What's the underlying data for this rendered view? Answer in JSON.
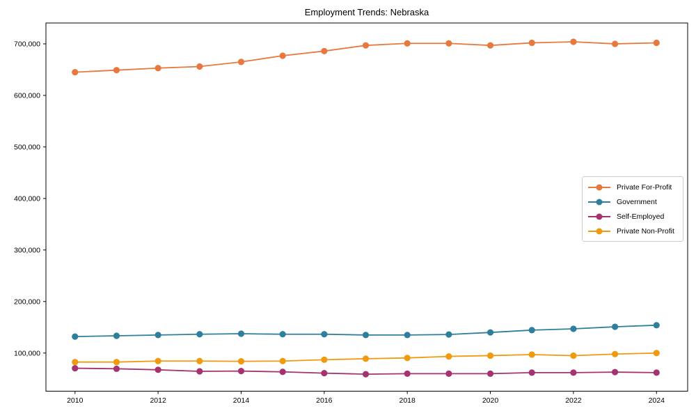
{
  "chart_data": {
    "type": "line",
    "title": "Employment Trends: Nebraska",
    "x": [
      2010,
      2011,
      2012,
      2013,
      2014,
      2015,
      2016,
      2017,
      2018,
      2019,
      2020,
      2021,
      2022,
      2023,
      2024
    ],
    "series": [
      {
        "name": "Private For-Profit",
        "color": "#E8793E",
        "values": [
          645000,
          649000,
          653000,
          656000,
          665000,
          677000,
          686000,
          697000,
          701000,
          701000,
          697000,
          702000,
          704000,
          700000,
          702000
        ]
      },
      {
        "name": "Government",
        "color": "#2E7F9B",
        "values": [
          132000,
          133500,
          135000,
          136500,
          137500,
          136500,
          136500,
          135000,
          135000,
          136000,
          140000,
          144500,
          147000,
          151000,
          154000
        ]
      },
      {
        "name": "Self-Employed",
        "color": "#A5336F",
        "values": [
          70500,
          69500,
          67500,
          64500,
          65000,
          63500,
          61000,
          59000,
          60000,
          60000,
          60000,
          62000,
          62000,
          63000,
          62000
        ]
      },
      {
        "name": "Private Non-Profit",
        "color": "#F09A10",
        "values": [
          82500,
          82500,
          84500,
          84500,
          84000,
          84500,
          87000,
          89000,
          90500,
          93500,
          95000,
          97000,
          95000,
          98000,
          100000
        ]
      }
    ],
    "xticks": [
      2010,
      2012,
      2014,
      2016,
      2018,
      2020,
      2022,
      2024
    ],
    "yticks": [
      100000,
      200000,
      300000,
      400000,
      500000,
      600000,
      700000
    ],
    "ytick_labels": [
      "100,000",
      "200,000",
      "300,000",
      "400,000",
      "500,000",
      "600,000",
      "700,000"
    ],
    "xlim": [
      2009.3,
      2024.75
    ],
    "ylim": [
      26000,
      740500
    ],
    "grid": false,
    "legend_position": "center-right",
    "marker": "circle",
    "xlabel": "",
    "ylabel": ""
  }
}
